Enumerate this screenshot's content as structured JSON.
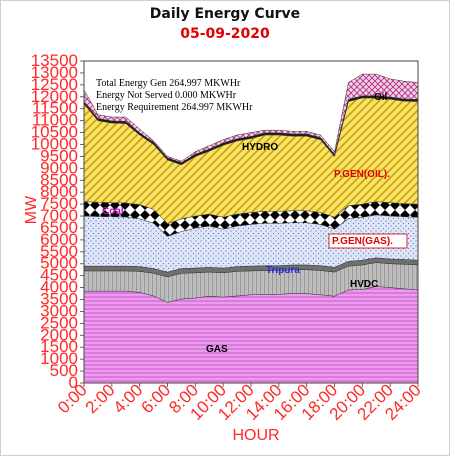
{
  "chart_data": {
    "type": "area",
    "title": "Daily Energy Curve",
    "subtitle": "05-09-2020",
    "xlabel": "HOUR",
    "ylabel": "MW",
    "ylim": [
      0,
      13500
    ],
    "y_ticks": [
      0,
      500,
      1000,
      1500,
      2000,
      2500,
      3000,
      3500,
      4000,
      4500,
      5000,
      5500,
      6000,
      6500,
      7000,
      7500,
      8000,
      8500,
      9000,
      9500,
      10000,
      10500,
      11000,
      11500,
      12000,
      12500,
      13000,
      13500
    ],
    "x_ticks": [
      "0:00",
      "2:00",
      "4:00",
      "6:00",
      "8:00",
      "10:00",
      "12:00",
      "14:00",
      "16:00",
      "18:00",
      "20:00",
      "22:00",
      "24:00"
    ],
    "x": [
      0,
      1,
      2,
      3,
      4,
      5,
      6,
      7,
      8,
      9,
      10,
      11,
      12,
      13,
      14,
      15,
      16,
      17,
      18,
      19,
      20,
      21,
      22,
      23,
      24
    ],
    "stack_tops": {
      "GAS": [
        3850,
        3850,
        3850,
        3850,
        3800,
        3650,
        3380,
        3520,
        3560,
        3640,
        3600,
        3650,
        3700,
        3700,
        3720,
        3750,
        3750,
        3700,
        3640,
        3900,
        3920,
        4050,
        4000,
        3950,
        3900
      ],
      "HVDC": [
        4700,
        4700,
        4700,
        4700,
        4680,
        4600,
        4450,
        4600,
        4620,
        4650,
        4620,
        4680,
        4700,
        4720,
        4720,
        4750,
        4750,
        4720,
        4650,
        4900,
        4950,
        5050,
        5000,
        4980,
        4950
      ],
      "Tripura": [
        4900,
        4900,
        4900,
        4900,
        4880,
        4800,
        4650,
        4800,
        4820,
        4850,
        4820,
        4880,
        4900,
        4920,
        4920,
        4950,
        4950,
        4920,
        4850,
        5100,
        5150,
        5250,
        5200,
        5180,
        5150
      ],
      "P.GEN(GAS)": [
        7000,
        6980,
        6970,
        6960,
        6880,
        6700,
        6150,
        6350,
        6500,
        6580,
        6450,
        6580,
        6650,
        6700,
        6700,
        6720,
        6720,
        6650,
        6450,
        6900,
        6950,
        7050,
        7000,
        6970,
        6950
      ],
      "Coal": [
        7600,
        7580,
        7560,
        7550,
        7480,
        7280,
        6680,
        6880,
        7000,
        7080,
        6950,
        7080,
        7150,
        7200,
        7200,
        7220,
        7220,
        7150,
        6950,
        7430,
        7500,
        7600,
        7560,
        7520,
        7500
      ],
      "P.GEN(OIL)": [
        11700,
        11000,
        10900,
        10880,
        10400,
        10000,
        9350,
        9150,
        9500,
        9720,
        9970,
        10150,
        10250,
        10400,
        10400,
        10350,
        10350,
        10200,
        9500,
        11800,
        11950,
        11950,
        11900,
        11820,
        11800
      ],
      "HYDRO": [
        11790,
        11090,
        10990,
        10970,
        10490,
        10090,
        9440,
        9240,
        9590,
        9810,
        10060,
        10240,
        10340,
        10490,
        10490,
        10440,
        10440,
        10290,
        9590,
        11890,
        12040,
        12040,
        11990,
        11910,
        11890
      ],
      "Oil": [
        12300,
        11250,
        11150,
        11150,
        10650,
        10150,
        9500,
        9300,
        9700,
        9950,
        10200,
        10400,
        10500,
        10600,
        10600,
        10550,
        10550,
        10400,
        9700,
        12600,
        12950,
        12950,
        12750,
        12650,
        12600
      ]
    },
    "series_order": [
      "GAS",
      "HVDC",
      "Tripura",
      "P.GEN(GAS)",
      "Coal",
      "P.GEN(OIL)",
      "HYDRO",
      "Oil"
    ],
    "series_colors": {
      "GAS": "#e58be8",
      "HVDC": "#a9a9a9",
      "Tripura": "#8a8a8a",
      "P.GEN(GAS)": "#c7d6f0",
      "Coal": "#000000",
      "P.GEN(OIL)": "#f3d63a",
      "HYDRO": "#2a2a2a",
      "Oil": "#c96fae"
    },
    "series_labels": {
      "GAS": "GAS",
      "HVDC": "HVDC",
      "Tripura": "Tripura",
      "P.GEN(GAS)": "P.GEN(GAS).",
      "Coal": "Coal",
      "P.GEN(OIL)": "P.GEN(OIL).",
      "HYDRO": "HYDRO",
      "Oil": "Oil"
    },
    "stats": [
      "Total Energy Gen  264.997 MKWHr",
      "Energy Not Served   0.000 MKWHr",
      "Energy Requirement     264.997 MKWHr"
    ]
  }
}
